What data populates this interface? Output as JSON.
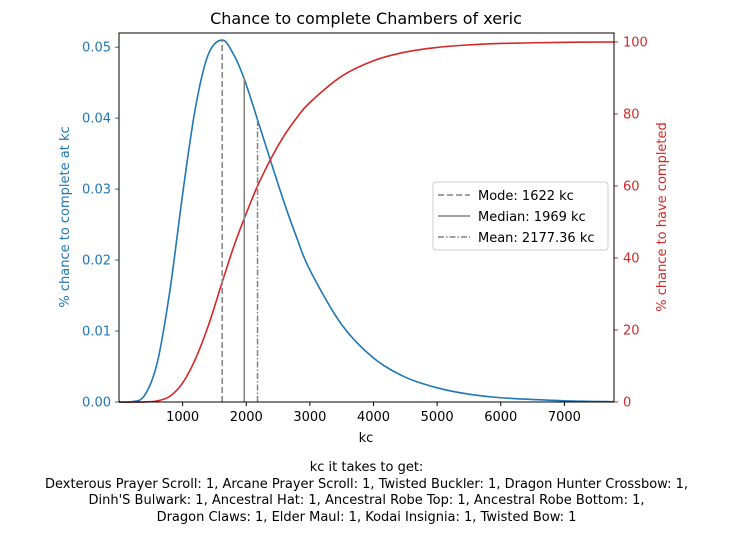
{
  "chart_data": {
    "type": "line",
    "title": "Chance to complete Chambers of xeric",
    "xlabel": "kc",
    "ylabel_left": "% chance to complete at kc",
    "ylabel_right": "% chance to have completed",
    "xlim": [
      0,
      7780
    ],
    "ylim_left": [
      0,
      0.052
    ],
    "ylim_right": [
      0,
      102.5
    ],
    "xticks": [
      "1000",
      "2000",
      "3000",
      "4000",
      "5000",
      "6000",
      "7000"
    ],
    "yticks_left": [
      "0.00",
      "0.01",
      "0.02",
      "0.03",
      "0.04",
      "0.05"
    ],
    "yticks_right": [
      "0",
      "20",
      "40",
      "60",
      "80",
      "100"
    ],
    "legend_position": "right",
    "colors": {
      "left_axis": "#1f77b4",
      "right_axis": "#d62728",
      "markers": "#808080"
    },
    "x": [
      0,
      200,
      400,
      600,
      800,
      1000,
      1200,
      1400,
      1622,
      1800,
      1969,
      2177,
      2400,
      2600,
      2800,
      3000,
      3500,
      4000,
      4500,
      5000,
      5500,
      6000,
      7000,
      7780
    ],
    "series": [
      {
        "axis": "left",
        "values": [
          0,
          3e-05,
          0.0009,
          0.0055,
          0.0157,
          0.0293,
          0.0414,
          0.0489,
          0.051,
          0.049,
          0.0455,
          0.0398,
          0.0335,
          0.028,
          0.023,
          0.0186,
          0.0109,
          0.0062,
          0.0035,
          0.002,
          0.0011,
          0.0006,
          0.00017,
          5e-05
        ]
      },
      {
        "axis": "right",
        "values": [
          0,
          0.0,
          0.02,
          0.3,
          1.6,
          5.3,
          11.9,
          21.0,
          33.3,
          43.0,
          51.0,
          60.0,
          68.0,
          74.1,
          79.1,
          83.2,
          90.5,
          94.8,
          97.2,
          98.5,
          99.2,
          99.6,
          99.9,
          100
        ]
      }
    ],
    "markers": [
      {
        "label": "Mode: 1622 kc",
        "x": 1622,
        "style": "dashed",
        "top": 0.051
      },
      {
        "label": "Median: 1969 kc",
        "x": 1969,
        "style": "solid",
        "top": 0.0457
      },
      {
        "label": "Mean: 2177.36 kc",
        "x": 2177.36,
        "style": "dashdot",
        "top": 0.0397
      }
    ]
  },
  "caption": {
    "lines": [
      "kc it takes to get:",
      "Dexterous Prayer Scroll: 1,  Arcane Prayer Scroll: 1,  Twisted Buckler: 1,  Dragon Hunter Crossbow: 1,",
      "Dinh'S Bulwark: 1,  Ancestral Hat: 1,  Ancestral Robe Top: 1,  Ancestral Robe Bottom: 1,",
      "Dragon Claws: 1,  Elder Maul: 1,  Kodai Insignia: 1,  Twisted Bow: 1"
    ]
  }
}
